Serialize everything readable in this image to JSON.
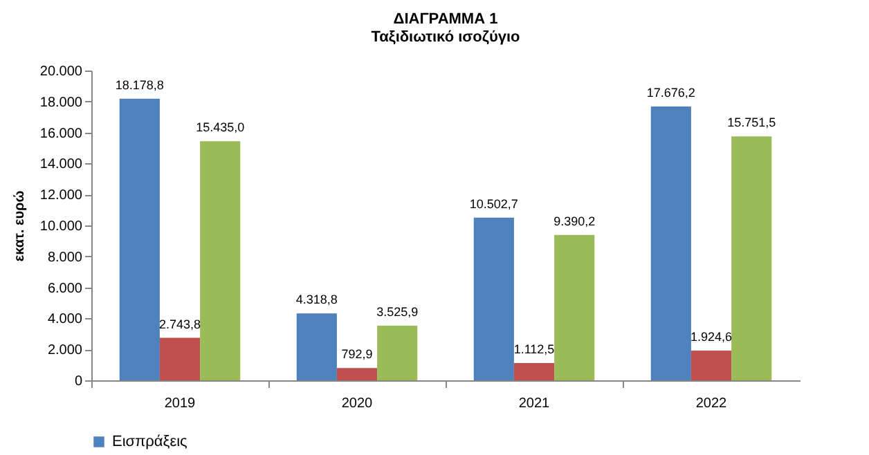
{
  "chart_data": {
    "type": "bar",
    "title": "ΔΙΑΓΡΑΜΜΑ 1",
    "subtitle": "Ταξιδιωτικό ισοζύγιο",
    "ylabel": "εκατ. ευρώ",
    "categories": [
      "2019",
      "2020",
      "2021",
      "2022"
    ],
    "series": [
      {
        "name": "Εισπράξεις",
        "color": "#4f81bd",
        "values": [
          18178.8,
          4318.8,
          10502.7,
          17676.2
        ],
        "value_labels": [
          "18.178,8",
          "4.318,8",
          "10.502,7",
          "17.676,2"
        ]
      },
      {
        "color": "#c0504d",
        "values": [
          2743.8,
          792.9,
          1112.5,
          1924.6
        ],
        "value_labels": [
          "2.743,8",
          "792,9",
          "1.112,5",
          "1.924,6"
        ]
      },
      {
        "color": "#9bbb59",
        "values": [
          15435.0,
          3525.9,
          9390.2,
          15751.5
        ],
        "value_labels": [
          "15.435,0",
          "3.525,9",
          "9.390,2",
          "15.751,5"
        ]
      }
    ],
    "ylim": [
      0,
      20000
    ],
    "yticks": [
      0,
      {
        "value": 2000,
        "label": "2.000"
      },
      {
        "value": 4000,
        "label": "4.000"
      },
      {
        "value": 6000,
        "label": "6.000"
      },
      {
        "value": 8000,
        "label": "8.000"
      },
      {
        "value": 10000,
        "label": "10.000"
      },
      {
        "value": 12000,
        "label": "12.000"
      },
      {
        "value": 14000,
        "label": "14.000"
      },
      {
        "value": 16000,
        "label": "16.000"
      },
      {
        "value": 18000,
        "label": "18.000"
      },
      {
        "value": 20000,
        "label": "20.000"
      }
    ],
    "grid": false,
    "legend": "bottom"
  }
}
